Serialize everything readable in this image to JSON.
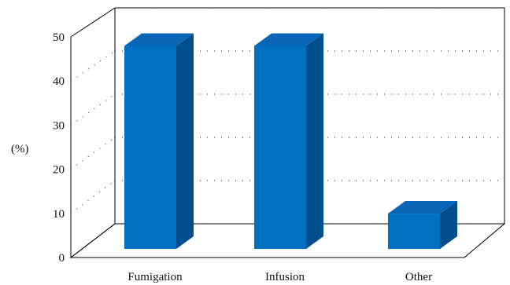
{
  "chart_data": {
    "type": "bar",
    "categories": [
      "Fumigation",
      "Infusion",
      "Other"
    ],
    "values": [
      46,
      46,
      8
    ],
    "ylabel": "(%)",
    "ylim": [
      0,
      50
    ],
    "yticks": [
      0,
      10,
      20,
      30,
      40,
      50
    ],
    "grid": true,
    "style": "3d",
    "colors": {
      "front": "#0070c0",
      "side": "#004e8c",
      "top": "#0a66b8"
    }
  }
}
